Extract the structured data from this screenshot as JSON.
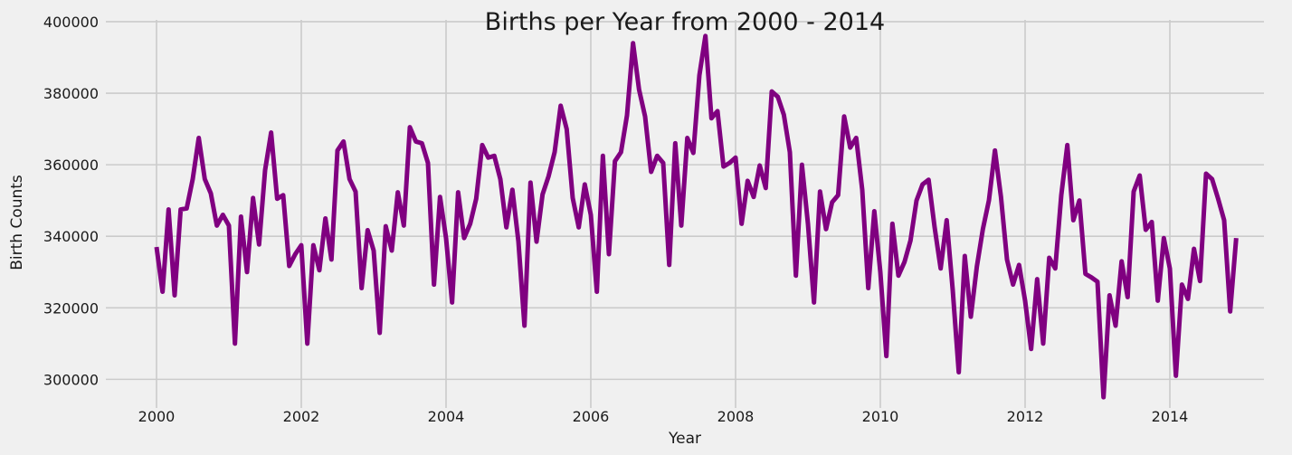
{
  "chart_data": {
    "type": "line",
    "title": "Births per Year from 2000 - 2014",
    "xlabel": "Year",
    "ylabel": "Birth Counts",
    "xlim": [
      1999.3,
      2015.3
    ],
    "ylim": [
      292000,
      400500
    ],
    "x_ticks": [
      2000,
      2002,
      2004,
      2006,
      2008,
      2010,
      2012,
      2014
    ],
    "y_ticks": [
      300000,
      320000,
      340000,
      360000,
      380000,
      400000
    ],
    "grid": true,
    "line_color": "#800080",
    "series": [
      {
        "x_start": 2000,
        "step": 0.0833333,
        "values": [
          337000,
          324500,
          347500,
          323500,
          347500,
          347800,
          356000,
          367500,
          356000,
          352000,
          343000,
          346000,
          343000,
          310000,
          345500,
          330000,
          350700,
          337700,
          358500,
          369000,
          350500,
          351500,
          331700,
          335000,
          337500,
          310000,
          337500,
          330500,
          345000,
          333500,
          364000,
          366500,
          356000,
          352500,
          325500,
          341700,
          336000,
          313000,
          342800,
          336000,
          352300,
          343000,
          370500,
          366500,
          366000,
          360500,
          326500,
          351000,
          339500,
          321500,
          352300,
          339500,
          343500,
          350500,
          365500,
          362000,
          362500,
          356000,
          342500,
          353000,
          338500,
          315000,
          355000,
          338500,
          351700,
          356800,
          363500,
          376500,
          370000,
          350700,
          342500,
          354500,
          346000,
          324500,
          362500,
          335000,
          361000,
          363500,
          373800,
          394000,
          381000,
          373500,
          358000,
          362500,
          360500,
          332000,
          366000,
          343000,
          367500,
          363300,
          385000,
          396000,
          373000,
          375000,
          359500,
          360500,
          362000,
          343500,
          355500,
          351000,
          359800,
          353500,
          380500,
          379000,
          374000,
          363500,
          329000,
          360000,
          343500,
          321500,
          352500,
          342000,
          349500,
          351500,
          373500,
          364800,
          367500,
          353000,
          325500,
          347000,
          330000,
          306500,
          343500,
          329000,
          332800,
          338800,
          350000,
          354500,
          355800,
          342500,
          331000,
          344500,
          325000,
          302000,
          334500,
          317500,
          331500,
          342000,
          350000,
          364000,
          351000,
          333500,
          326500,
          332000,
          322000,
          308500,
          328000,
          310000,
          334000,
          331000,
          351500,
          365500,
          344500,
          350000,
          329500,
          328500,
          327300,
          295000,
          323500,
          315000,
          333000,
          323000,
          352500,
          357000,
          341800,
          344000,
          322000,
          339500,
          331000,
          301000,
          326500,
          322500,
          336500,
          327500,
          357500,
          356000,
          350500,
          344500,
          319000,
          339500
        ]
      }
    ]
  }
}
